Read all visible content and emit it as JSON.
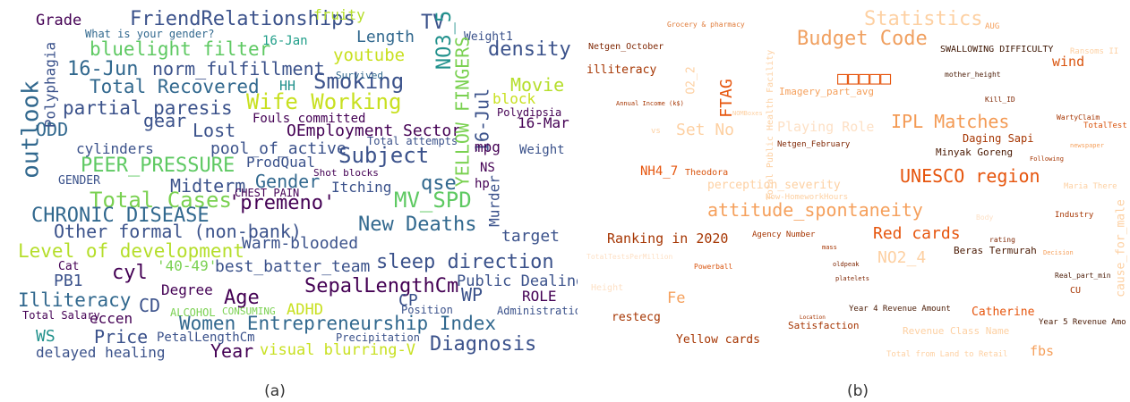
{
  "panels": [
    {
      "label": "(a)",
      "words": [
        "FriendRelationships",
        "What is your gender?",
        "bluelight filter",
        "Grade",
        "fruity",
        "TV",
        "Length",
        "16-Jan",
        "youtube",
        "density",
        "Weight1",
        "16-Jun",
        "norm_fulfillment",
        "Total Recovered",
        "Smoking",
        "HH",
        "Movie",
        "Survived",
        "partial paresis",
        "Wife Working",
        "block",
        "16-Mar",
        "Polydipsia",
        "Lost",
        "gear",
        "OEmployment Sector",
        "ODD",
        "outlook",
        "Polyphagia",
        "NO3_5",
        "YELLOW FINGERS",
        "16-Jul",
        "cylinders",
        "pool_of_active",
        "Subject",
        "mpg",
        "Weight",
        "PEER_PRESSURE",
        "ProdQual",
        "Fouls committed",
        "Total attempts",
        "Shot blocks",
        "GENDER",
        "Midterm",
        "Gender",
        "Itching",
        "qse",
        "MV_SPD",
        "Total Cases",
        "'premeno'",
        "CHEST PAIN",
        "New Deaths",
        "CHRONIC DISEASE",
        "Murder",
        "NS",
        "hp",
        "target",
        "Other formal (non-bank)",
        "Warm-blooded",
        "Level of development",
        "sleep direction",
        "Cat",
        "PB1",
        "cyl",
        "'40-49'",
        "best_batter_team",
        "SepalLengthCm",
        "Public Dealing",
        "WP",
        "Illiteracy",
        "CD",
        "Degree",
        "Age",
        "CP",
        "ROLE",
        "ADHD",
        "Position",
        "Administration",
        "Total Salary",
        "eccen",
        "ALCOHOL",
        "CONSUMING",
        "Women Entrepreneurship Index",
        "WS",
        "Price",
        "PetalLengthCm",
        "Precipitation",
        "Diagnosis",
        "Year",
        "visual blurring-V",
        "delayed healing"
      ]
    },
    {
      "label": "(b)",
      "words": [
        "Statistics",
        "AUG",
        "Grocery & pharmacy",
        "Netgen_October",
        "Budget Code",
        "SWALLOWING DIFFICULTY",
        "Ransoms II",
        "illiteracy",
        "wind",
        "mother_height",
        "O2_2",
        "□□□□□",
        "Total Public Health Facility",
        "FTAG",
        "Imagery_part_avg",
        "Kill_ID",
        "Annual Income (k$)",
        "NOMBoxes",
        "Playing Role",
        "Set No",
        "vs",
        "IPL Matches",
        "WartyClaim",
        "TotalTest",
        "Netgen_February",
        "Daging Sapi",
        "newspaper",
        "Following",
        "Minyak Goreng",
        "NH4_7",
        "Theodora",
        "perception_severity",
        "UNESCO region",
        "cause_for_male",
        "Maria There",
        "Now-HomeworkHours",
        "attitude_spontaneity",
        "Body",
        "Industry",
        "Ranking in 2020",
        "Agency Number",
        "Red cards",
        "mass",
        "rating",
        "NO2_4",
        "Beras Termurah",
        "Decision",
        "oldpeak",
        "TotalTestsPerMillion",
        "Powerball",
        "platelets",
        "Real_part_min",
        "Height",
        "Fe",
        "CU",
        "Year 4 Revenue Amount",
        "Catherine",
        "restecg",
        "Location",
        "Satisfaction",
        "Year 5 Revenue Amo",
        "Revenue Class Name",
        "Yellow cards",
        "fbs",
        "Total from Land to Retail"
      ]
    }
  ]
}
